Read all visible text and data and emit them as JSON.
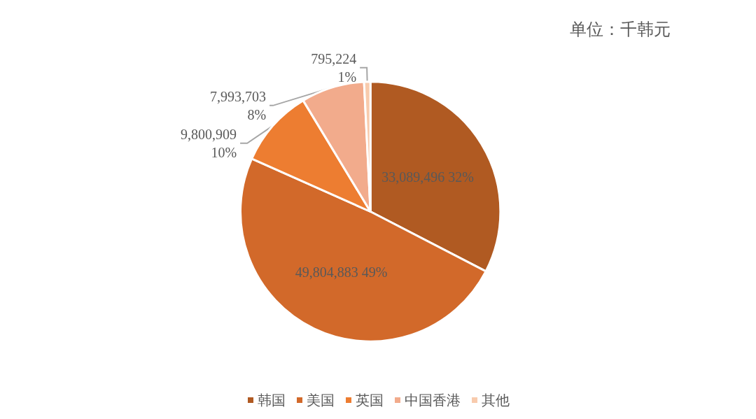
{
  "chart_data": {
    "type": "pie",
    "categories": [
      "韩国",
      "美国",
      "英国",
      "中国香港",
      "其他"
    ],
    "values": [
      33089496,
      49804883,
      9800909,
      7993703,
      795224
    ],
    "colors": [
      "#b05a22",
      "#d2692a",
      "#ed7d31",
      "#f2ab8c",
      "#f8cbad"
    ],
    "value_labels": [
      "33,089,496 32%",
      "49,804,883 49%",
      "9,800,909 10%",
      "7,993,703 8%",
      "795,224 1%"
    ],
    "annotations": [
      "单位：千韩元"
    ],
    "legend": "bottom"
  }
}
